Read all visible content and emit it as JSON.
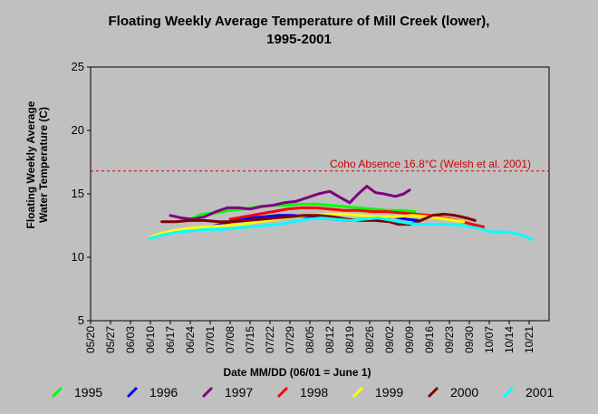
{
  "chart_data": {
    "type": "line",
    "title_line1": "Floating Weekly Average Temperature of Mill Creek (lower),",
    "title_line2": "1995-2001",
    "xlabel": "Date MM/DD (06/01 = June 1)",
    "ylabel_line1": "Floating Weekly Average",
    "ylabel_line2": "Water Temperature (C)",
    "ylim": [
      5,
      25
    ],
    "yticks": [
      "5",
      "10",
      "15",
      "20",
      "25"
    ],
    "xlim": [
      "05/20",
      "10/28"
    ],
    "xticks": [
      "05/20",
      "05/27",
      "06/03",
      "06/10",
      "06/17",
      "06/24",
      "07/01",
      "07/08",
      "07/15",
      "07/22",
      "07/29",
      "08/05",
      "08/12",
      "08/19",
      "08/26",
      "09/02",
      "09/09",
      "09/16",
      "09/23",
      "09/30",
      "10/07",
      "10/14",
      "10/21"
    ],
    "grid": false,
    "legend_position": "bottom",
    "threshold": {
      "value": 16.8,
      "label": "Coho Absence 16.8°C (Welsh et al. 2001)",
      "color": "#cc0000"
    },
    "series": [
      {
        "name": "1995",
        "color": "#00ff00",
        "x": [
          "06/24",
          "06/28",
          "07/03",
          "07/08",
          "07/13",
          "07/18",
          "07/23",
          "07/28",
          "08/02",
          "08/07",
          "08/12",
          "08/17",
          "08/22",
          "08/27",
          "09/01",
          "09/06",
          "09/11"
        ],
        "y": [
          13.0,
          13.4,
          13.5,
          13.7,
          13.8,
          14.0,
          14.1,
          14.1,
          14.2,
          14.2,
          14.1,
          14.0,
          13.9,
          13.8,
          13.7,
          13.7,
          13.6
        ]
      },
      {
        "name": "1996",
        "color": "#0000ff",
        "x": [
          "07/01",
          "07/05",
          "07/10",
          "07/15",
          "07/20",
          "07/25",
          "07/30",
          "08/04",
          "08/09",
          "08/14",
          "08/19",
          "08/24",
          "08/29",
          "09/03",
          "09/08",
          "09/12"
        ],
        "y": [
          12.4,
          12.6,
          12.9,
          13.1,
          13.2,
          13.3,
          13.3,
          13.2,
          13.1,
          13.0,
          12.9,
          13.0,
          13.1,
          13.2,
          13.0,
          12.9
        ]
      },
      {
        "name": "1997",
        "color": "#800080",
        "x": [
          "06/17",
          "06/21",
          "06/25",
          "06/29",
          "07/03",
          "07/07",
          "07/11",
          "07/15",
          "07/19",
          "07/23",
          "07/27",
          "07/31",
          "08/04",
          "08/08",
          "08/12",
          "08/15",
          "08/19",
          "08/22",
          "08/25",
          "08/28",
          "08/31",
          "09/04",
          "09/07",
          "09/09"
        ],
        "y": [
          13.3,
          13.1,
          13.0,
          13.2,
          13.6,
          13.9,
          13.9,
          13.8,
          14.0,
          14.1,
          14.3,
          14.4,
          14.7,
          15.0,
          15.2,
          14.8,
          14.3,
          15.0,
          15.6,
          15.1,
          15.0,
          14.8,
          15.0,
          15.3
        ]
      },
      {
        "name": "1998",
        "color": "#ff0000",
        "x": [
          "07/08",
          "07/13",
          "07/18",
          "07/23",
          "07/28",
          "08/02",
          "08/07",
          "08/12",
          "08/17",
          "08/22",
          "08/27",
          "09/01",
          "09/06",
          "09/11",
          "09/16",
          "09/21",
          "09/26",
          "10/01",
          "10/05"
        ],
        "y": [
          13.0,
          13.2,
          13.4,
          13.6,
          13.8,
          13.9,
          13.9,
          13.8,
          13.7,
          13.7,
          13.6,
          13.6,
          13.5,
          13.4,
          13.3,
          13.1,
          12.9,
          12.6,
          12.4
        ]
      },
      {
        "name": "1999",
        "color": "#ffff00",
        "x": [
          "06/10",
          "06/14",
          "06/18",
          "06/24",
          "06/30",
          "07/06",
          "07/12",
          "07/18",
          "07/24",
          "07/30",
          "08/05",
          "08/11",
          "08/17",
          "08/23",
          "08/29",
          "09/04",
          "09/10",
          "09/16",
          "09/22",
          "09/28"
        ],
        "y": [
          11.6,
          11.9,
          12.1,
          12.3,
          12.4,
          12.5,
          12.6,
          12.8,
          13.0,
          13.2,
          13.3,
          13.4,
          13.4,
          13.3,
          13.2,
          13.2,
          13.3,
          13.2,
          13.0,
          12.8
        ]
      },
      {
        "name": "2000",
        "color": "#800000",
        "x": [
          "06/14",
          "06/19",
          "06/24",
          "06/29",
          "07/04",
          "07/09",
          "07/14",
          "07/19",
          "07/24",
          "07/29",
          "08/03",
          "08/08",
          "08/13",
          "08/18",
          "08/23",
          "08/28",
          "09/02",
          "09/05",
          "09/09",
          "09/13",
          "09/17",
          "09/21",
          "09/25",
          "09/29",
          "10/02"
        ],
        "y": [
          12.8,
          12.8,
          12.9,
          12.9,
          12.8,
          12.8,
          12.9,
          13.0,
          13.1,
          13.2,
          13.3,
          13.3,
          13.2,
          13.0,
          12.9,
          12.9,
          12.8,
          12.6,
          12.6,
          12.9,
          13.3,
          13.4,
          13.3,
          13.1,
          12.9
        ]
      },
      {
        "name": "2001",
        "color": "#00ffff",
        "x": [
          "06/10",
          "06/15",
          "06/20",
          "06/25",
          "06/30",
          "07/05",
          "07/10",
          "07/15",
          "07/20",
          "07/25",
          "07/30",
          "08/04",
          "08/09",
          "08/14",
          "08/19",
          "08/24",
          "08/29",
          "09/03",
          "09/08",
          "09/13",
          "09/18",
          "09/23",
          "09/28",
          "10/03",
          "10/08",
          "10/13",
          "10/18",
          "10/22"
        ],
        "y": [
          11.5,
          11.8,
          12.0,
          12.1,
          12.2,
          12.2,
          12.3,
          12.4,
          12.5,
          12.6,
          12.8,
          13.0,
          13.1,
          13.0,
          12.9,
          13.0,
          13.1,
          12.9,
          12.7,
          12.6,
          12.6,
          12.6,
          12.5,
          12.3,
          12.0,
          12.0,
          11.8,
          11.4
        ]
      }
    ]
  }
}
